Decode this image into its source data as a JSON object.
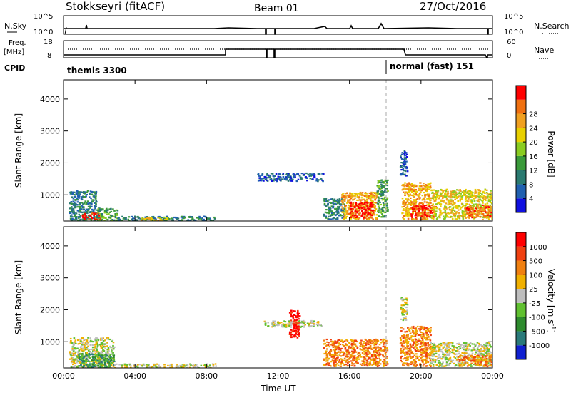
{
  "header": {
    "station": "Stokkseyri (fitACF)",
    "beam": "Beam 01",
    "date": "27/Oct/2016"
  },
  "status_panel": {
    "nsky_label": "N.Sky",
    "nsky_ticks": [
      "10^5",
      "10^0"
    ],
    "nsearch_label": "N.Search",
    "nsearch_ticks": [
      "10^5",
      "10^0"
    ],
    "freq_label": "Freq.",
    "freq_unit": "[MHz]",
    "freq_ticks": [
      "18",
      "8"
    ],
    "nave_label": "Nave",
    "nave_ticks": [
      "60",
      "0"
    ],
    "cpid_label": "CPID",
    "cpid_modes": [
      "themis 3300",
      "normal (fast) 151"
    ]
  },
  "chart_data": [
    {
      "type": "heatmap",
      "title": "",
      "xlabel": "",
      "ylabel": "Slant Range [km]",
      "xlim": [
        0,
        24
      ],
      "ylim": [
        180,
        4600
      ],
      "x_ticks": [
        "00:00",
        "04:00",
        "08:00",
        "12:00",
        "16:00",
        "20:00",
        "00:00"
      ],
      "y_ticks": [
        "1000",
        "2000",
        "3000",
        "4000"
      ],
      "colorbar": {
        "label": "Power [dB]",
        "ticks": [
          "4",
          "8",
          "12",
          "16",
          "20",
          "24",
          "28"
        ],
        "colors": [
          "#1010e0",
          "#2060b0",
          "#2a7a70",
          "#3a9a3a",
          "#8acc20",
          "#e8d000",
          "#f0a020",
          "#f07010",
          "#ff0000"
        ]
      },
      "regions": [
        {
          "t": [
            0.3,
            1.8
          ],
          "r": [
            200,
            1150
          ],
          "level": 2
        },
        {
          "t": [
            1.0,
            2.0
          ],
          "r": [
            250,
            450
          ],
          "level": 8
        },
        {
          "t": [
            1.8,
            3.0
          ],
          "r": [
            200,
            600
          ],
          "level": 3
        },
        {
          "t": [
            3.0,
            8.5
          ],
          "r": [
            200,
            350
          ],
          "level": 2
        },
        {
          "t": [
            4.2,
            5.8
          ],
          "r": [
            200,
            320
          ],
          "level": 5
        },
        {
          "t": [
            10.8,
            14.5
          ],
          "r": [
            1450,
            1700
          ],
          "level": 1
        },
        {
          "t": [
            14.5,
            15.7
          ],
          "r": [
            250,
            900
          ],
          "level": 2
        },
        {
          "t": [
            15.5,
            17.5
          ],
          "r": [
            250,
            1100
          ],
          "level": 6
        },
        {
          "t": [
            16.0,
            17.3
          ],
          "r": [
            300,
            800
          ],
          "level": 8
        },
        {
          "t": [
            17.5,
            18.1
          ],
          "r": [
            300,
            1500
          ],
          "level": 3
        },
        {
          "t": [
            18.9,
            20.5
          ],
          "r": [
            250,
            1400
          ],
          "level": 6
        },
        {
          "t": [
            19.4,
            20.8
          ],
          "r": [
            300,
            700
          ],
          "level": 8
        },
        {
          "t": [
            20.5,
            24.0
          ],
          "r": [
            250,
            1200
          ],
          "level": 5
        },
        {
          "t": [
            22.5,
            24.0
          ],
          "r": [
            300,
            700
          ],
          "level": 7
        },
        {
          "t": [
            18.8,
            19.2
          ],
          "r": [
            1600,
            2400
          ],
          "level": 1
        }
      ]
    },
    {
      "type": "heatmap",
      "title": "",
      "xlabel": "Time UT",
      "ylabel": "Slant Range [km]",
      "xlim": [
        0,
        24
      ],
      "ylim": [
        180,
        4600
      ],
      "x_ticks": [
        "00:00",
        "04:00",
        "08:00",
        "12:00",
        "16:00",
        "20:00",
        "00:00"
      ],
      "y_ticks": [
        "1000",
        "2000",
        "3000",
        "4000"
      ],
      "colorbar": {
        "label": "Velocity [m s^-1]",
        "ticks": [
          "1000",
          "500",
          "100",
          "25",
          "-25",
          "-100",
          "-500",
          "-1000"
        ],
        "colors": [
          "#1020d0",
          "#2a7a7a",
          "#2e8b2e",
          "#60c030",
          "#bebebe",
          "#f0b000",
          "#f08010",
          "#f04010",
          "#ff0000"
        ]
      },
      "regions": [
        {
          "t": [
            0.3,
            2.8
          ],
          "r": [
            200,
            1150
          ],
          "level": 4
        },
        {
          "t": [
            0.8,
            2.8
          ],
          "r": [
            200,
            650
          ],
          "level": 2
        },
        {
          "t": [
            2.8,
            8.5
          ],
          "r": [
            200,
            330
          ],
          "level": 4
        },
        {
          "t": [
            11.2,
            14.5
          ],
          "r": [
            1480,
            1680
          ],
          "level": 4
        },
        {
          "t": [
            12.6,
            13.2
          ],
          "r": [
            1150,
            2000
          ],
          "level": 8
        },
        {
          "t": [
            14.5,
            18.1
          ],
          "r": [
            250,
            1100
          ],
          "level": 6
        },
        {
          "t": [
            18.8,
            20.5
          ],
          "r": [
            250,
            1500
          ],
          "level": 6
        },
        {
          "t": [
            20.5,
            24.0
          ],
          "r": [
            250,
            1000
          ],
          "level": 4
        },
        {
          "t": [
            22.0,
            24.0
          ],
          "r": [
            250,
            600
          ],
          "level": 6
        },
        {
          "t": [
            18.8,
            19.2
          ],
          "r": [
            1700,
            2400
          ],
          "level": 4
        }
      ]
    }
  ]
}
